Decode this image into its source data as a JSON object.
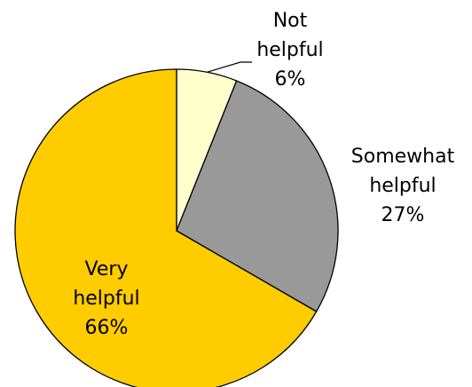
{
  "chart_data": {
    "type": "pie",
    "title": "",
    "slices": [
      {
        "label_lines": [
          "Not",
          "helpful"
        ],
        "percent_label": "6%",
        "value": 6,
        "color": "#FFFFCC"
      },
      {
        "label_lines": [
          "Somewhat",
          "helpful"
        ],
        "percent_label": "27%",
        "value": 27,
        "color": "#999999"
      },
      {
        "label_lines": [
          "Very",
          "helpful"
        ],
        "percent_label": "66%",
        "value": 66,
        "color": "#FFCC00"
      }
    ],
    "start_angle": "12 o'clock",
    "direction": "clockwise",
    "legend": "none"
  }
}
